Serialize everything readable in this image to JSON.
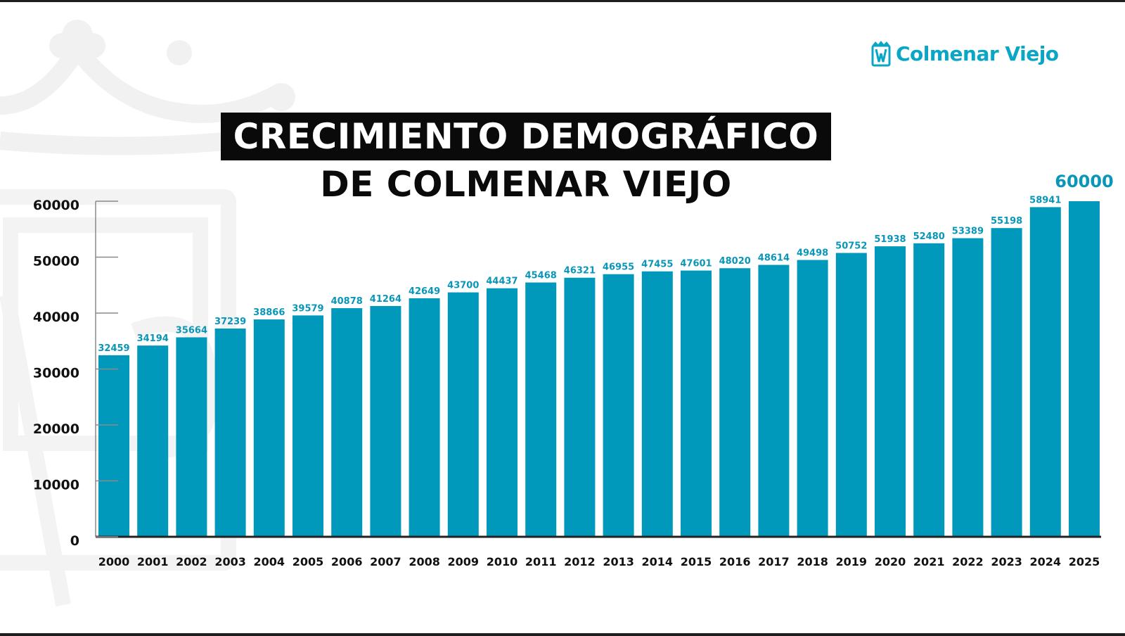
{
  "brand": {
    "logo_text": "Colmenar Viejo",
    "accent_color": "#0099bb",
    "logo_icon": "colmenar-viejo-crest-icon"
  },
  "chart_data": {
    "type": "bar",
    "title_line1": "CRECIMIENTO DEMOGRÁFICO",
    "title_line2": "DE COLMENAR VIEJO",
    "xlabel": "",
    "ylabel": "",
    "ylim": [
      0,
      60000
    ],
    "yticks": [
      0,
      10000,
      20000,
      30000,
      40000,
      50000,
      60000
    ],
    "grid": false,
    "bar_color": "#0099bb",
    "categories": [
      "2000",
      "2001",
      "2002",
      "2003",
      "2004",
      "2005",
      "2006",
      "2007",
      "2008",
      "2009",
      "2010",
      "2011",
      "2012",
      "2013",
      "2014",
      "2015",
      "2016",
      "2017",
      "2018",
      "2019",
      "2020",
      "2021",
      "2022",
      "2023",
      "2024",
      "2025"
    ],
    "values": [
      32459,
      34194,
      35664,
      37239,
      38866,
      39579,
      40878,
      41264,
      42649,
      43700,
      44437,
      45468,
      46321,
      46955,
      47455,
      47601,
      48020,
      48614,
      49498,
      50752,
      51938,
      52480,
      53389,
      55198,
      58941,
      60000
    ]
  }
}
